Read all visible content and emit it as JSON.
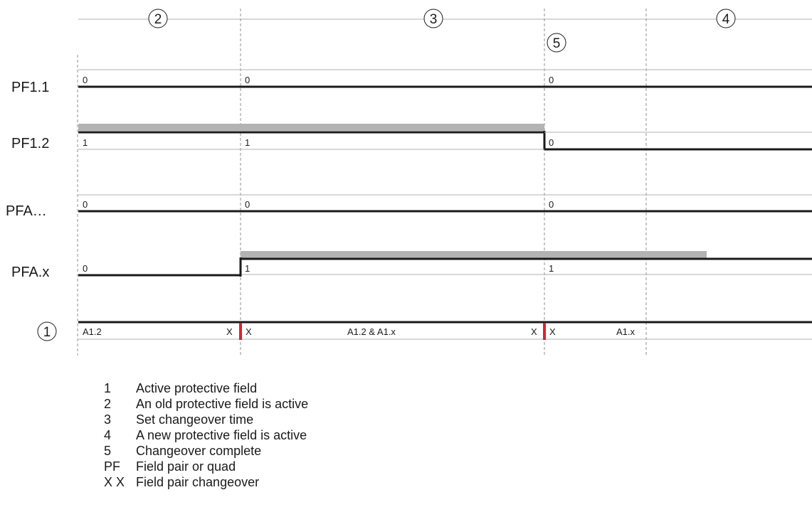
{
  "phases": [
    {
      "id": "2",
      "label": "2"
    },
    {
      "id": "3",
      "label": "3"
    },
    {
      "id": "4",
      "label": "4"
    },
    {
      "id": "5",
      "label": "5"
    }
  ],
  "rows": [
    {
      "label": "PF1.1",
      "values": [
        "0",
        "0",
        "0"
      ]
    },
    {
      "label": "PF1.2",
      "values": [
        "1",
        "1",
        "0"
      ]
    },
    {
      "label": "PFA…",
      "values": [
        "0",
        "0",
        "0"
      ]
    },
    {
      "label": "PFA.x",
      "values": [
        "0",
        "1",
        "1"
      ]
    }
  ],
  "active_row": {
    "label": "1",
    "segments": [
      "A1.2",
      "X",
      "X",
      "A1.2 & A1.x",
      "X",
      "X",
      "A1.x"
    ]
  },
  "colors": {
    "line": "#1a1a1a",
    "grid": "#b0b0b0",
    "bar": "#b3b3b3",
    "marker": "#e0202a"
  },
  "legend": [
    {
      "key": "1",
      "text": "Active protective field"
    },
    {
      "key": "2",
      "text": "An old protective field is active"
    },
    {
      "key": "3",
      "text": "Set changeover time"
    },
    {
      "key": "4",
      "text": "A new protective field is active"
    },
    {
      "key": "5",
      "text": "Changeover complete"
    },
    {
      "key": "PF",
      "text": "Field pair or quad"
    },
    {
      "key": "X X",
      "text": "Field pair changeover"
    }
  ]
}
